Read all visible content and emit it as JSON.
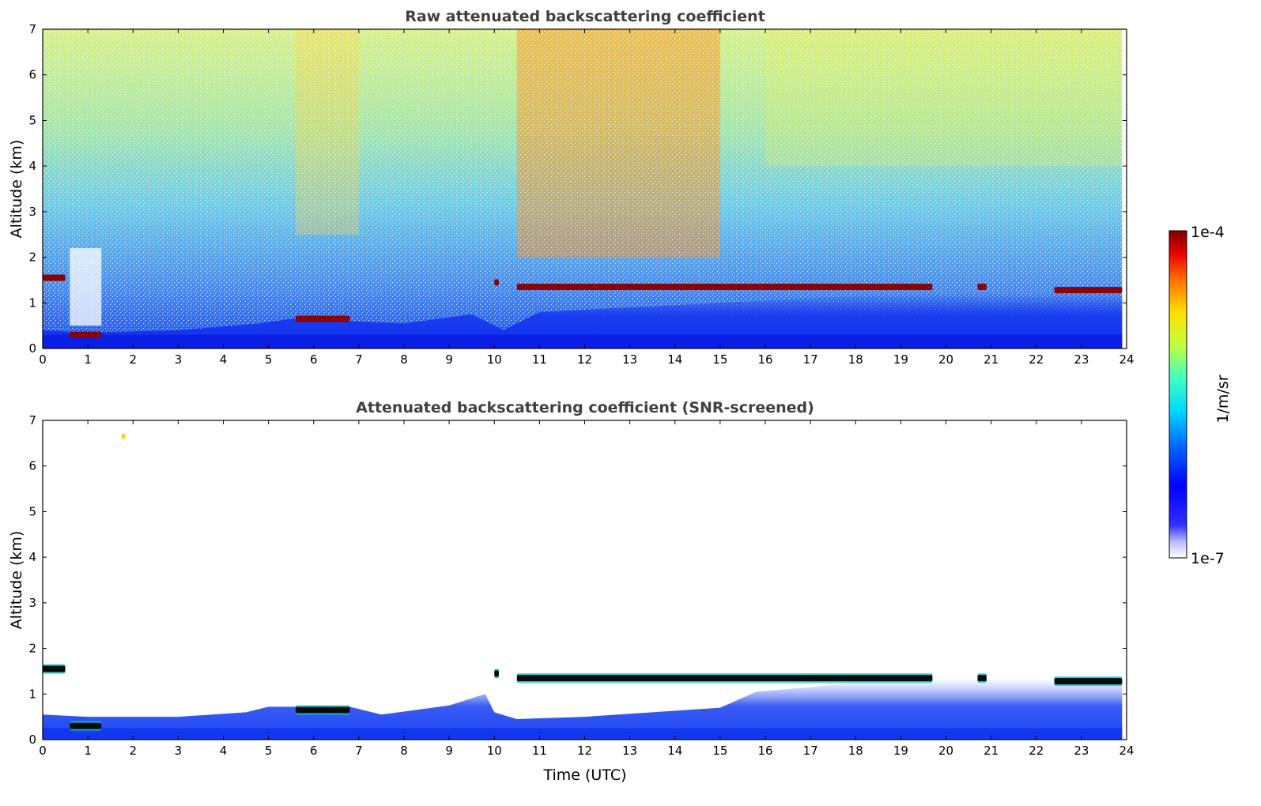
{
  "chart_data": [
    {
      "type": "heatmap",
      "title": "Raw attenuated backscattering coefficient",
      "xlabel": "",
      "ylabel": "Altitude (km)",
      "xlim": [
        0,
        24
      ],
      "ylim": [
        0,
        7
      ],
      "xticks": [
        "0",
        "1",
        "2",
        "3",
        "4",
        "5",
        "6",
        "7",
        "8",
        "9",
        "10",
        "11",
        "12",
        "13",
        "14",
        "15",
        "16",
        "17",
        "18",
        "19",
        "20",
        "21",
        "22",
        "23",
        "24"
      ],
      "yticks": [
        "0",
        "1",
        "2",
        "3",
        "4",
        "5",
        "6",
        "7"
      ],
      "grid": false,
      "colorscale": "jet",
      "cloud_layers": [
        {
          "t_start": 0.0,
          "t_end": 0.5,
          "altitude_km": 1.55
        },
        {
          "t_start": 0.6,
          "t_end": 1.3,
          "altitude_km": 0.3
        },
        {
          "t_start": 5.6,
          "t_end": 6.8,
          "altitude_km": 0.65
        },
        {
          "t_start": 10.0,
          "t_end": 10.1,
          "altitude_km": 1.45
        },
        {
          "t_start": 10.5,
          "t_end": 19.7,
          "altitude_km": 1.35
        },
        {
          "t_start": 20.7,
          "t_end": 20.9,
          "altitude_km": 1.35
        },
        {
          "t_start": 22.4,
          "t_end": 23.9,
          "altitude_km": 1.28
        }
      ]
    },
    {
      "type": "heatmap",
      "title": "Attenuated backscattering coefficient (SNR-screened)",
      "xlabel": "Time (UTC)",
      "ylabel": "Altitude (km)",
      "xlim": [
        0,
        24
      ],
      "ylim": [
        0,
        7
      ],
      "xticks": [
        "0",
        "1",
        "2",
        "3",
        "4",
        "5",
        "6",
        "7",
        "8",
        "9",
        "10",
        "11",
        "12",
        "13",
        "14",
        "15",
        "16",
        "17",
        "18",
        "19",
        "20",
        "21",
        "22",
        "23",
        "24"
      ],
      "yticks": [
        "0",
        "1",
        "2",
        "3",
        "4",
        "5",
        "6",
        "7"
      ],
      "grid": false,
      "colorscale": "jet"
    }
  ],
  "colorbar": {
    "label": "1/m/sr",
    "max_label": "1e-4",
    "min_label": "1e-7",
    "scale": "log",
    "range": [
      1e-07,
      0.0001
    ]
  },
  "colors": {
    "title_color": "#404040",
    "cloud_color": "#8b0000",
    "boundary_layer_color": "#0a1ee6"
  }
}
